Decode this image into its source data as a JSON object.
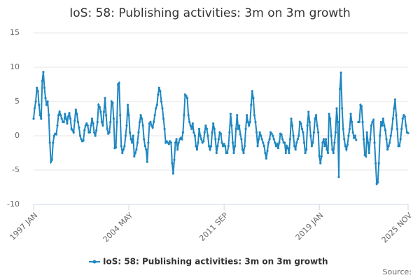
{
  "chart_data": {
    "type": "line",
    "title": "IoS: 58: Publishing activities: 3m on 3m growth",
    "source": "Source:",
    "categories": [
      "1997 JAN",
      null,
      null,
      null,
      null,
      null,
      null,
      null,
      null,
      null,
      null,
      null,
      null,
      null,
      null,
      null,
      null,
      null,
      null,
      null,
      null,
      null,
      null,
      null,
      null,
      null,
      null,
      null,
      null,
      null,
      null,
      null,
      null,
      null,
      null,
      null,
      null,
      null,
      null,
      null,
      null,
      null,
      null,
      null,
      null,
      null,
      null,
      null,
      null,
      null,
      null,
      null,
      null,
      null,
      null,
      null,
      null,
      null,
      null,
      null,
      null,
      null,
      null,
      null,
      null,
      null,
      null,
      null,
      null,
      null,
      null,
      null,
      null,
      null,
      null,
      null,
      null,
      null,
      null,
      null,
      null,
      null,
      null,
      null,
      null,
      null,
      null,
      null,
      "2004 MAY",
      null,
      null,
      null,
      null,
      null,
      null,
      null,
      null,
      null,
      null,
      null,
      null,
      null,
      null,
      null,
      null,
      null,
      null,
      null,
      null,
      null,
      null,
      null,
      null,
      null,
      null,
      null,
      null,
      null,
      null,
      null,
      null,
      null,
      null,
      null,
      null,
      null,
      null,
      null,
      null,
      null,
      null,
      null,
      null,
      null,
      null,
      null,
      null,
      null,
      null,
      null,
      null,
      null,
      null,
      null,
      null,
      null,
      null,
      null,
      null,
      null,
      null,
      null,
      null,
      null,
      null,
      null,
      null,
      null,
      null,
      null,
      null,
      null,
      null,
      null,
      null,
      null,
      null,
      null,
      null,
      null,
      null,
      null,
      null,
      null,
      null,
      null,
      "2011 SEP",
      null,
      null,
      null,
      null,
      null,
      null,
      null,
      null,
      null,
      null,
      null,
      null,
      null,
      null,
      null,
      null,
      null,
      null,
      null,
      null,
      null,
      null,
      null,
      null,
      null,
      null,
      null,
      null,
      null,
      null,
      null,
      null,
      null,
      null,
      null,
      null,
      null,
      null,
      null,
      null,
      null,
      null,
      null,
      null,
      null,
      null,
      null,
      null,
      null,
      null,
      null,
      null,
      null,
      null,
      null,
      null,
      null,
      null,
      null,
      null,
      null,
      null,
      null,
      null,
      null,
      null,
      null,
      null,
      null,
      null,
      null,
      null,
      null,
      null,
      null,
      null,
      null,
      null,
      null,
      null,
      null,
      null,
      null,
      null,
      null,
      null,
      null,
      "2019 JAN",
      null,
      null,
      null,
      null,
      null,
      null,
      null,
      null,
      null,
      null,
      null,
      null,
      null,
      null,
      null,
      null,
      null,
      null,
      null,
      null,
      null,
      null,
      null,
      null,
      null,
      null,
      null,
      null,
      null,
      null,
      null,
      null,
      null,
      null,
      null,
      null,
      null,
      null,
      null,
      null,
      null,
      null,
      null,
      null,
      null,
      null,
      null,
      null,
      null,
      null,
      null,
      null,
      null,
      null,
      null,
      null,
      null,
      null,
      null,
      null,
      null,
      null,
      null,
      null,
      null,
      null,
      null,
      null,
      null,
      null,
      null,
      null,
      null,
      null,
      null,
      null,
      null,
      null,
      null,
      null,
      null,
      "2025 NOV"
    ],
    "series": [
      {
        "name": "IoS: 58: Publishing activities: 3m on 3m growth",
        "color": "#1f87c1",
        "values": [
          2.5,
          4,
          5,
          7,
          6.5,
          4.5,
          3,
          2.5,
          8,
          9.3,
          7,
          5.5,
          4.5,
          5,
          3,
          -1,
          -3.8,
          -3.5,
          -1,
          0,
          0.3,
          0.2,
          1.5,
          3,
          3.5,
          3,
          2.5,
          2,
          2,
          3.2,
          2.5,
          1.8,
          2.8,
          3.3,
          2.5,
          1,
          0.8,
          0.5,
          2.2,
          3.8,
          3.2,
          2,
          1.2,
          0,
          -0.5,
          -0.8,
          -0.7,
          0.8,
          1.5,
          1.8,
          1.5,
          0.5,
          0.5,
          1.5,
          2.5,
          1.8,
          0.5,
          0,
          0.8,
          2,
          4.5,
          4.2,
          3.5,
          2,
          1.5,
          3.5,
          5.5,
          3,
          1,
          0.3,
          0.5,
          2,
          5,
          4.8,
          2.5,
          -1.8,
          -1.7,
          2,
          7.5,
          7.7,
          3,
          -1.5,
          -2.5,
          -2,
          -1.5,
          0,
          1.5,
          4.5,
          3,
          0.5,
          -0.5,
          -1,
          0,
          -3,
          -2.5,
          -2,
          -1,
          0.5,
          2,
          3,
          2.5,
          1.5,
          -0.5,
          -1.5,
          -2,
          -3.8,
          -1,
          1.8,
          2,
          1.5,
          1.2,
          2,
          3,
          4,
          4.5,
          6,
          7,
          6.5,
          5,
          4,
          2.5,
          1,
          -1,
          -0.8,
          -1,
          -1.2,
          -0.8,
          -1,
          -4,
          -5.5,
          -3.5,
          -1,
          -0.5,
          -2,
          -1,
          -0.5,
          -0.3,
          -0.5,
          0.5,
          3,
          6,
          5.8,
          5.5,
          3,
          2,
          1.5,
          1,
          1.8,
          0.5,
          0,
          -1.5,
          -2,
          -1,
          1,
          0,
          -0.5,
          -1,
          -0.8,
          0.5,
          1.5,
          1,
          0,
          -1.5,
          -2,
          -1.5,
          0.5,
          1.8,
          1,
          -0.5,
          -2.5,
          -1.5,
          -0.5,
          0.5,
          0.3,
          -1,
          -1.5,
          -1.2,
          -1.5,
          -2.5,
          -2.5,
          -1.5,
          0.5,
          3.2,
          1.5,
          -1,
          -2.5,
          -1.5,
          1,
          3,
          1,
          1.5,
          0.2,
          -0.5,
          -2,
          -2.5,
          -1.5,
          1,
          3,
          2,
          1.5,
          2,
          4.5,
          6.5,
          5.5,
          3,
          2,
          0.5,
          -1.5,
          -0.5,
          0.5,
          0,
          -0.5,
          -1,
          -1.5,
          -2.5,
          -3.3,
          -2.2,
          -1,
          -0.5,
          0.5,
          0.3,
          0,
          -0.5,
          -1,
          -1.5,
          -1.2,
          -1.8,
          -1,
          0.3,
          0.2,
          -0.5,
          -1,
          -1,
          -2.5,
          -1.5,
          -1.8,
          -2.5,
          -0.5,
          2.5,
          1.5,
          0,
          -1.5,
          -2,
          -1,
          -0.5,
          0,
          2,
          1.8,
          1,
          0.5,
          -1,
          -2.5,
          -2,
          1.5,
          3.5,
          2,
          0,
          -1.5,
          -1,
          0.5,
          2.5,
          3,
          1.5,
          0.5,
          -3,
          -4,
          -3,
          -1,
          -0.5,
          -1.5,
          -0.5,
          -2,
          -2.5,
          3.2,
          2.5,
          0,
          -2,
          -2.5,
          -1,
          0.5,
          4,
          2,
          -6,
          6.8,
          9.2,
          4,
          1,
          -0.5,
          -1.5,
          -2,
          -1.3,
          0,
          1,
          3.2,
          2,
          0.5,
          -0.3,
          0,
          -0.6,
          null,
          2,
          2,
          4.5,
          4.3,
          2,
          -0.5,
          -2.8,
          -3,
          0.5,
          -1,
          -2.5,
          -0.5,
          1.5,
          2,
          2.3,
          -1,
          -4,
          -7,
          -6.8,
          -4,
          0,
          2,
          1.5,
          2.5,
          1.5,
          0.8,
          -0.5,
          -2,
          -1.5,
          -1,
          0,
          1,
          2.5,
          4,
          5.3,
          3,
          1,
          -1.5,
          -1.5,
          -0.5,
          1,
          2.5,
          3,
          2.8,
          1.5,
          0.5,
          0.4
        ]
      }
    ],
    "ylim": [
      -10,
      15
    ],
    "yticks": [
      15,
      10,
      5,
      0,
      -5,
      -10
    ],
    "grid": true,
    "legend": "bottom"
  }
}
